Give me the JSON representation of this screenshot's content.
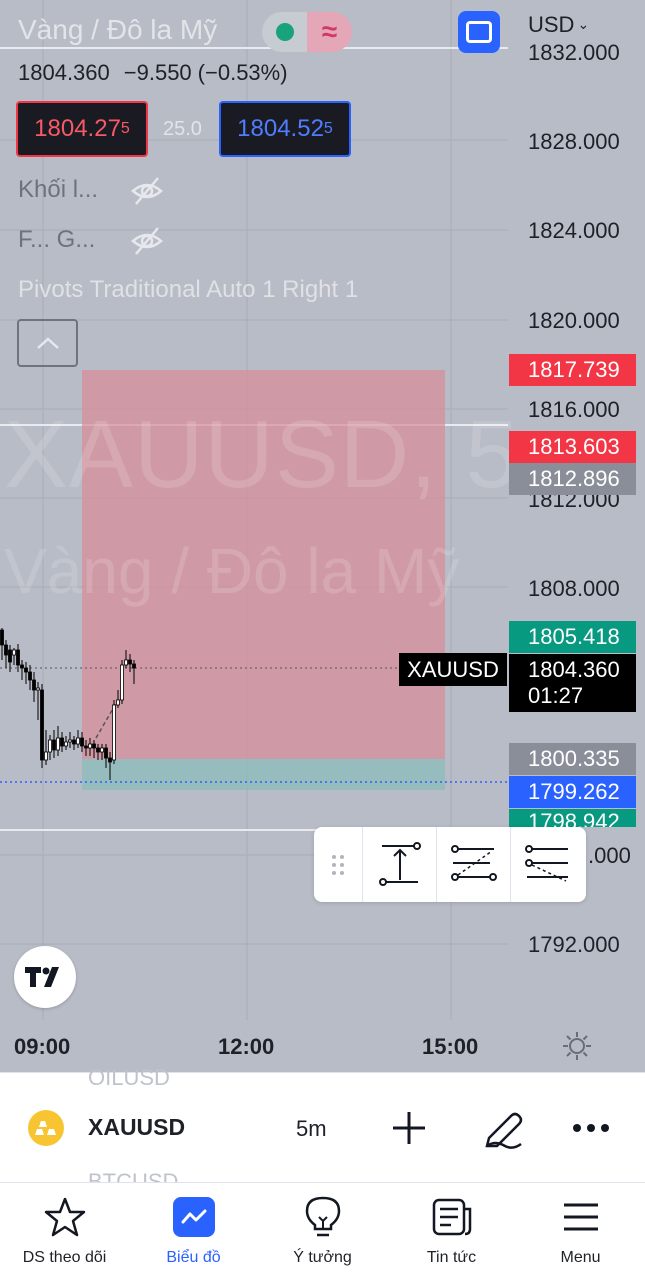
{
  "header": {
    "symbol_title": "Vàng / Đô la Mỹ",
    "currency": "USD",
    "ohlc": {
      "price": "1804.360",
      "change": "−9.550",
      "change_pct": "(−0.53%)"
    },
    "sell_price": "1804.27",
    "sell_price_small": "5",
    "spread": "25.0",
    "buy_price": "1804.52",
    "buy_price_small": "5"
  },
  "indicators": {
    "volume_label": "Khối l...",
    "second_label": "F... G...",
    "pivots_label": "Pivots Traditional Auto 1 Right 1"
  },
  "watermark": {
    "line1": "XAUUSD, 5",
    "line2": "Vàng / Đô la Mỹ"
  },
  "price_axis": {
    "labels": [
      "1832.000",
      "1828.000",
      "1824.000",
      "1820.000",
      "1816.000",
      "1812.000",
      "1808.000",
      "1792.000"
    ],
    "partial_label": ".000"
  },
  "price_tags": {
    "target_top": "1817.739",
    "stop_upper": "1813.603",
    "prev_close": "1812.896",
    "high": "1805.418",
    "current": "1804.360",
    "countdown": "01:27",
    "entry": "1800.335",
    "bid": "1799.262",
    "low": "1798.942"
  },
  "symbol_tag": "XAUUSD",
  "time_axis": {
    "labels": [
      "09:00",
      "12:00",
      "15:00"
    ]
  },
  "chart_colors": {
    "loss_zone": "#d98c99",
    "profit_zone": "#8fbcbc",
    "up": "#ffffff",
    "down": "#000000"
  },
  "toolbar": {
    "ghost_above": "OILUSD",
    "ghost_below": "BTCUSD",
    "symbol": "XAUUSD",
    "interval": "5m"
  },
  "nav": [
    {
      "label": "DS theo dõi",
      "icon": "star-icon"
    },
    {
      "label": "Biểu đồ",
      "icon": "chart-icon"
    },
    {
      "label": "Ý tưởng",
      "icon": "lightbulb-icon"
    },
    {
      "label": "Tin tức",
      "icon": "news-icon"
    },
    {
      "label": "Menu",
      "icon": "menu-icon"
    }
  ]
}
